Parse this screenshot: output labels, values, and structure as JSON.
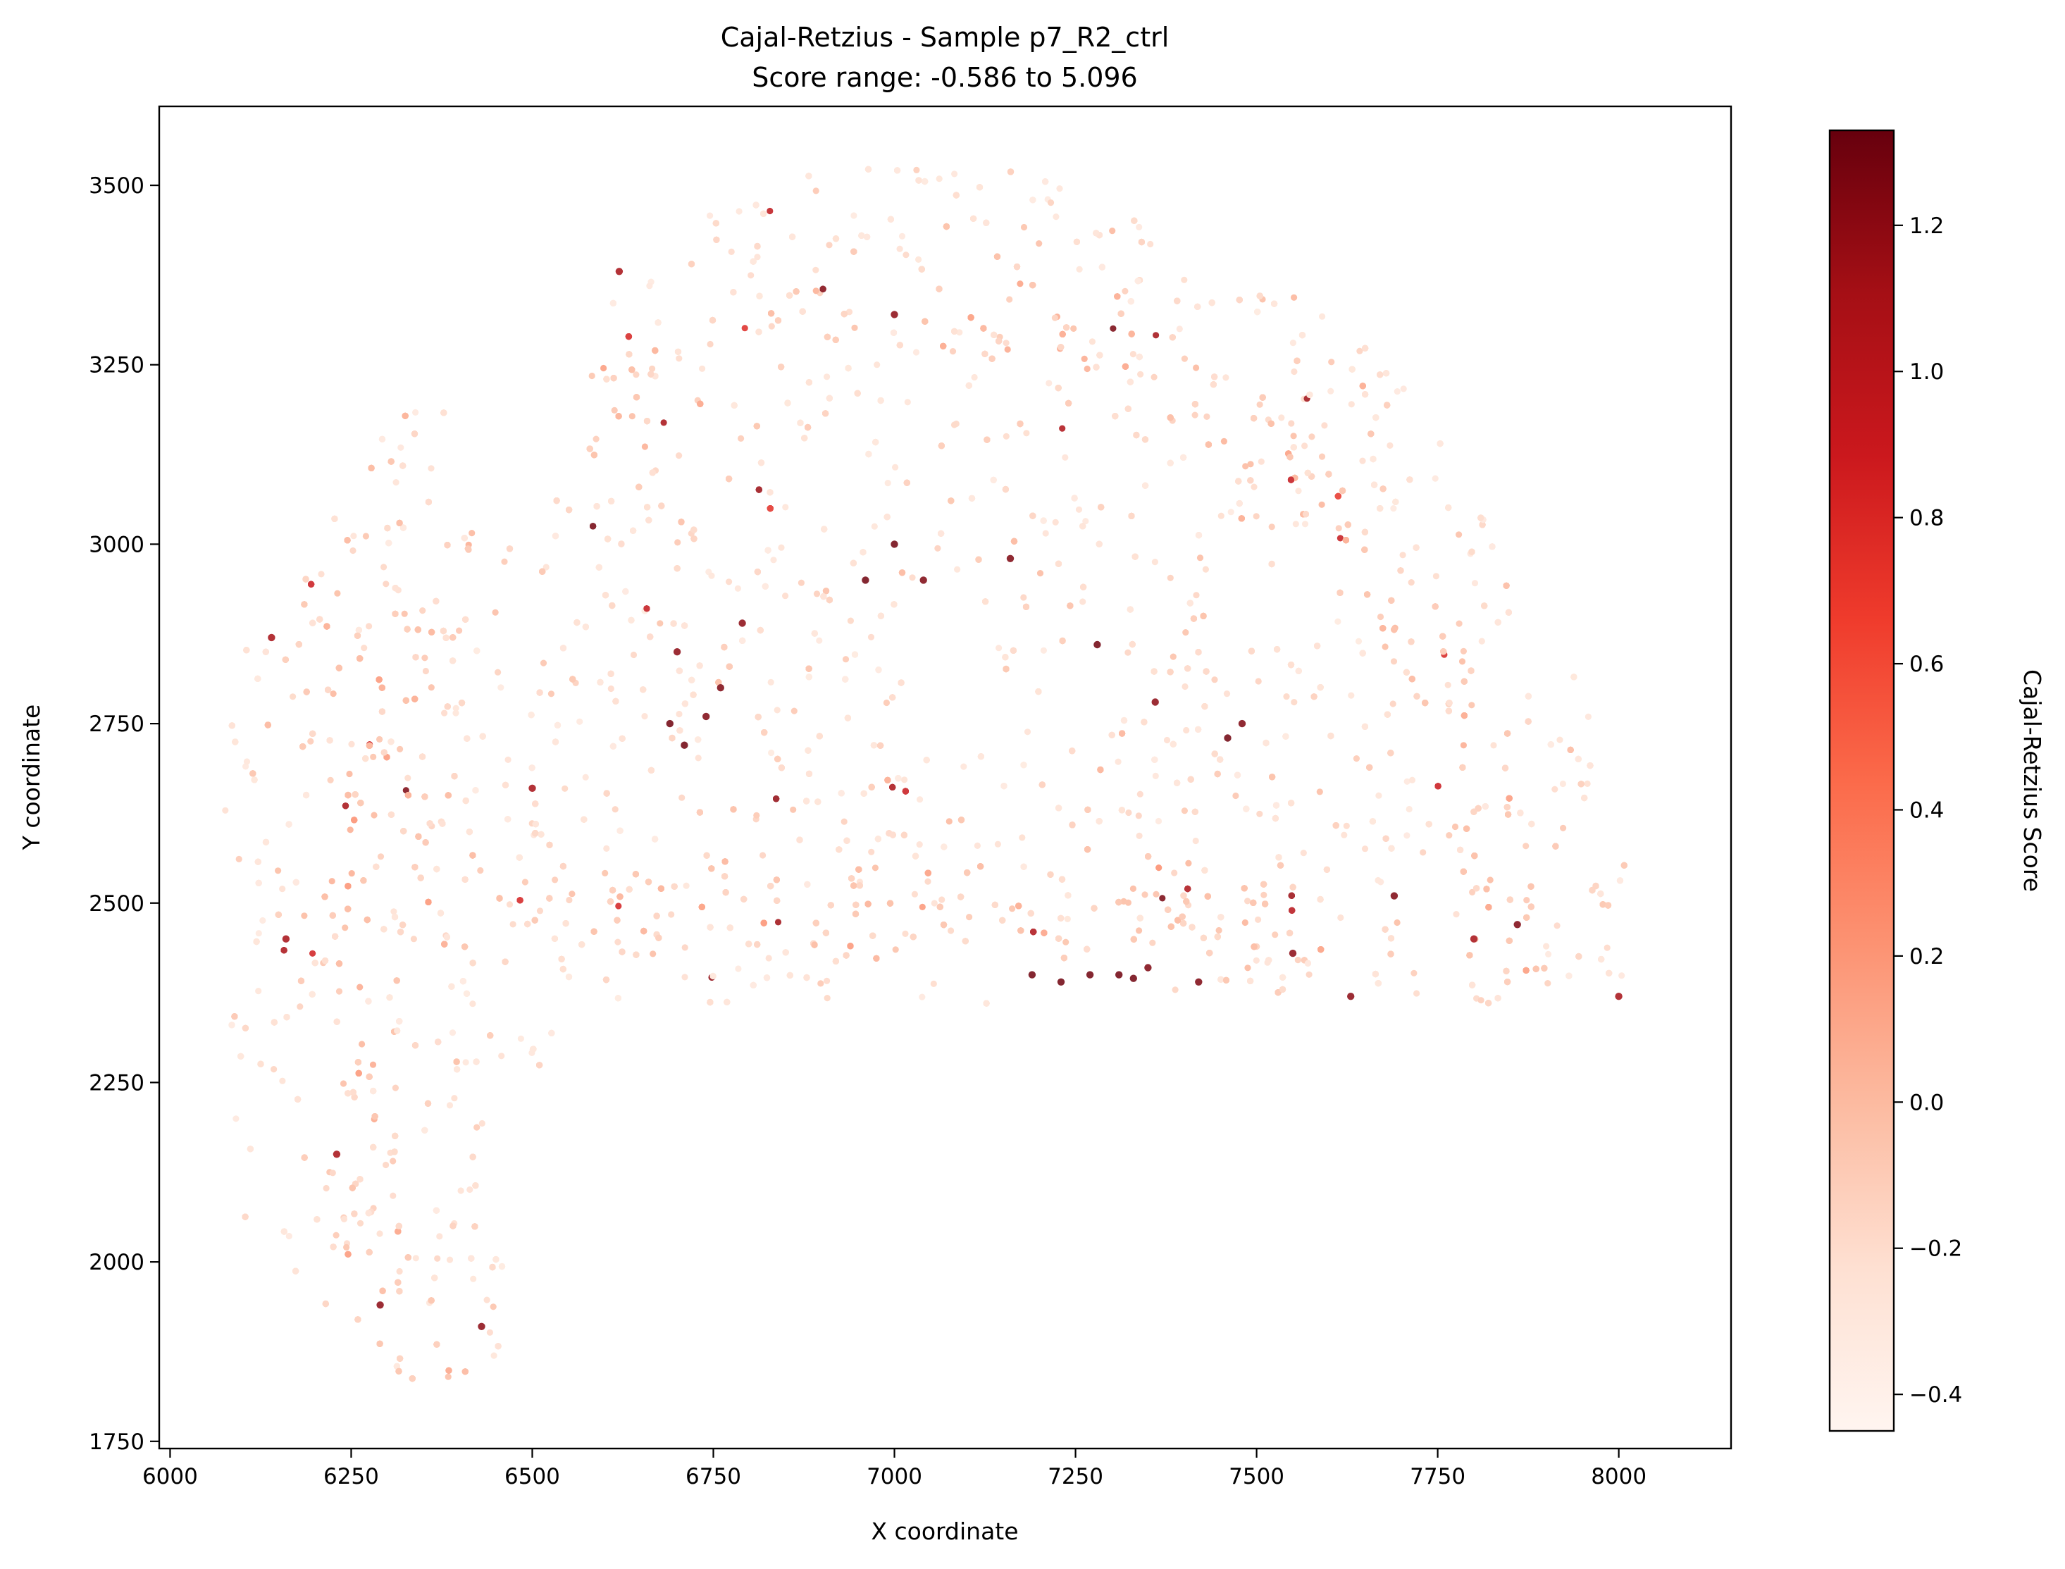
{
  "chart_data": {
    "type": "scatter",
    "title": "Cajal-Retzius - Sample p7_R2_ctrl",
    "subtitle": "Score range: -0.586 to 5.096",
    "xlabel": "X coordinate",
    "ylabel": "Y coordinate",
    "xlim": [
      5985,
      8155
    ],
    "ylim": [
      1740,
      3610
    ],
    "x_ticks": [
      6000,
      6250,
      6500,
      6750,
      7000,
      7250,
      7500,
      7750,
      8000
    ],
    "x_tick_labels": [
      "6000",
      "6250",
      "6500",
      "6750",
      "7000",
      "7250",
      "7500",
      "7750",
      "8000"
    ],
    "y_ticks": [
      1750,
      2000,
      2250,
      2500,
      2750,
      3000,
      3250,
      3500
    ],
    "y_tick_labels": [
      "1750",
      "2000",
      "2250",
      "2500",
      "2750",
      "3000",
      "3250",
      "3500"
    ],
    "grid": false,
    "colormap": "Reds",
    "colorbar": {
      "label": "Cajal-Retzius Score",
      "range": [
        -0.45,
        1.33
      ],
      "ticks": [
        -0.4,
        -0.2,
        0.0,
        0.2,
        0.4,
        0.6,
        0.8,
        1.0,
        1.2
      ],
      "tick_labels": [
        "−0.4",
        "−0.2",
        "0.0",
        "0.2",
        "0.4",
        "0.6",
        "0.8",
        "1.0",
        "1.2"
      ]
    },
    "highlight_points": [
      {
        "x": 6690,
        "y": 2750,
        "value": 1.3
      },
      {
        "x": 6710,
        "y": 2720,
        "value": 1.3
      },
      {
        "x": 6740,
        "y": 2760,
        "value": 1.25
      },
      {
        "x": 6760,
        "y": 2800,
        "value": 1.25
      },
      {
        "x": 6700,
        "y": 2850,
        "value": 1.2
      },
      {
        "x": 6790,
        "y": 2890,
        "value": 1.2
      },
      {
        "x": 6960,
        "y": 2950,
        "value": 1.3
      },
      {
        "x": 7000,
        "y": 3000,
        "value": 1.3
      },
      {
        "x": 7040,
        "y": 2950,
        "value": 1.25
      },
      {
        "x": 7160,
        "y": 2980,
        "value": 1.25
      },
      {
        "x": 7280,
        "y": 2860,
        "value": 1.3
      },
      {
        "x": 7360,
        "y": 2780,
        "value": 1.2
      },
      {
        "x": 7460,
        "y": 2730,
        "value": 1.3
      },
      {
        "x": 7480,
        "y": 2750,
        "value": 1.25
      },
      {
        "x": 7190,
        "y": 2400,
        "value": 1.3
      },
      {
        "x": 7230,
        "y": 2390,
        "value": 1.3
      },
      {
        "x": 7270,
        "y": 2400,
        "value": 1.3
      },
      {
        "x": 7310,
        "y": 2400,
        "value": 1.3
      },
      {
        "x": 7330,
        "y": 2395,
        "value": 1.3
      },
      {
        "x": 7350,
        "y": 2410,
        "value": 1.25
      },
      {
        "x": 7420,
        "y": 2390,
        "value": 1.25
      },
      {
        "x": 7550,
        "y": 2430,
        "value": 1.2
      },
      {
        "x": 7630,
        "y": 2370,
        "value": 1.2
      },
      {
        "x": 7690,
        "y": 2510,
        "value": 1.25
      },
      {
        "x": 7860,
        "y": 2470,
        "value": 1.25
      },
      {
        "x": 6500,
        "y": 2660,
        "value": 1.1
      },
      {
        "x": 6160,
        "y": 2450,
        "value": 1.1
      },
      {
        "x": 6140,
        "y": 2870,
        "value": 1.1
      },
      {
        "x": 6230,
        "y": 2150,
        "value": 1.1
      },
      {
        "x": 6290,
        "y": 1940,
        "value": 1.2
      },
      {
        "x": 6430,
        "y": 1910,
        "value": 1.2
      },
      {
        "x": 6620,
        "y": 3380,
        "value": 1.1
      },
      {
        "x": 7000,
        "y": 3320,
        "value": 1.2
      },
      {
        "x": 8000,
        "y": 2370,
        "value": 1.1
      },
      {
        "x": 7800,
        "y": 2450,
        "value": 1.1
      }
    ]
  }
}
